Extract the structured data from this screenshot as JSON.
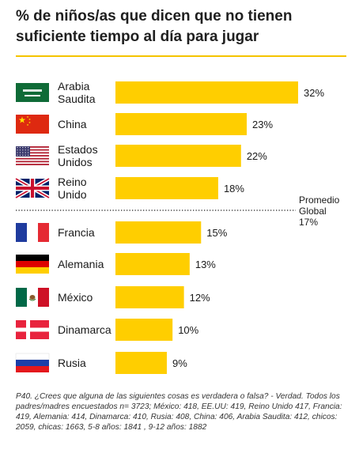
{
  "title": "% de niños/as que dicen que no tienen suficiente tiempo al día para jugar",
  "chart_data": {
    "type": "bar",
    "orientation": "horizontal",
    "categories": [
      "Arabia Saudita",
      "China",
      "Estados Unidos",
      "Reino Unido",
      "Francia",
      "Alemania",
      "México",
      "Dinamarca",
      "Rusia"
    ],
    "category_lines": [
      [
        "Arabia",
        "Saudita"
      ],
      [
        "China"
      ],
      [
        "Estados",
        "Unidos"
      ],
      [
        "Reino",
        "Unido"
      ],
      [
        "Francia"
      ],
      [
        "Alemania"
      ],
      [
        "México"
      ],
      [
        "Dinamarca"
      ],
      [
        "Rusia"
      ]
    ],
    "flags": [
      "saudi-arabia-flag-icon",
      "china-flag-icon",
      "usa-flag-icon",
      "uk-flag-icon",
      "france-flag-icon",
      "germany-flag-icon",
      "mexico-flag-icon",
      "denmark-flag-icon",
      "russia-flag-icon"
    ],
    "values": [
      32,
      23,
      22,
      18,
      15,
      13,
      12,
      10,
      9
    ],
    "value_suffix": "%",
    "xlim": [
      0,
      32
    ],
    "reference_line": {
      "value": 17,
      "label_lines": [
        "Promedio",
        "Global",
        "17%"
      ]
    },
    "bar_color": "#ffce00"
  },
  "footnote": "P40. ¿Crees que alguna de las siguientes cosas es verdadera o falsa? - Verdad. Todos los padres/madres encuestados n= 3723; México: 418, EE.UU: 419, Reino Unido 417, Francia: 419, Alemania: 414, Dinamarca: 410, Rusia: 408, China: 406, Arabia Saudita: 412, chicos: 2059, chicas: 1663, 5-8 años: 1841 , 9-12 años: 1882"
}
